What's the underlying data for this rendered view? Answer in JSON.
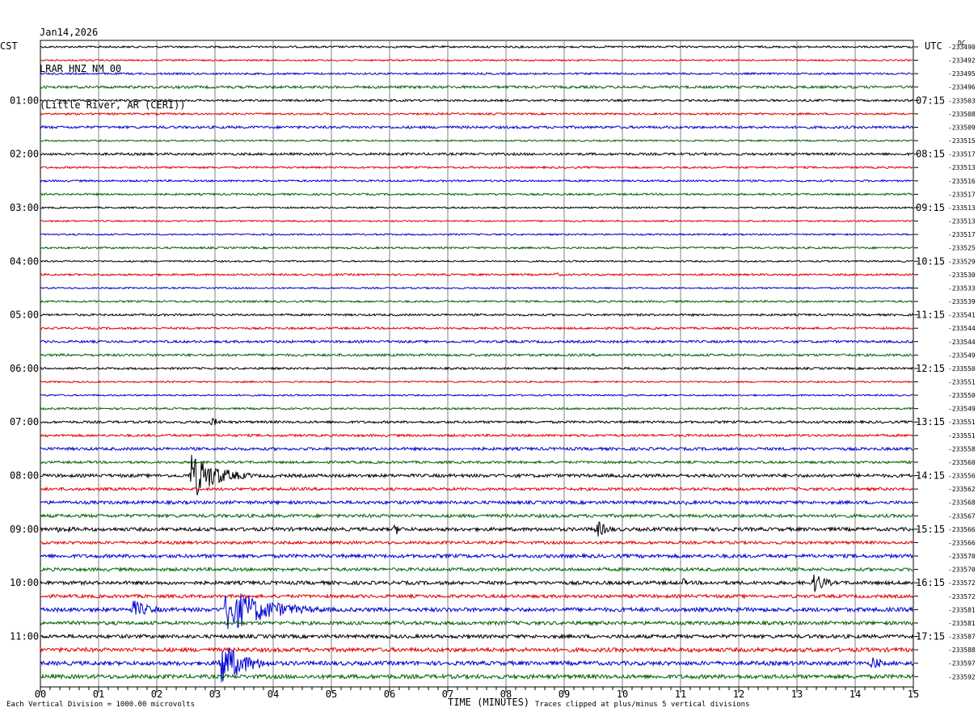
{
  "header": {
    "date": "Jan14,2026",
    "station": "LRAR HNZ NM 00",
    "location": "(Little River, AR (CERI))"
  },
  "left_zone_label": "CST",
  "right_zone_label": "UTC",
  "dc_label": "DC",
  "footer": {
    "scale_text": "Each Vertical Division = 1000.00 microvolts",
    "xlabel": "TIME (MINUTES)",
    "clip_text": "Traces clipped at plus/minus 5 vertical divisions"
  },
  "colors": {
    "black": "#000000",
    "red": "#e00000",
    "blue": "#0000d0",
    "green": "#006400",
    "grid": "#808080"
  },
  "chart_data": {
    "type": "line",
    "xlabel": "TIME (MINUTES)",
    "xlim": [
      0,
      15
    ],
    "x_ticks": [
      "00",
      "01",
      "02",
      "03",
      "04",
      "05",
      "06",
      "07",
      "08",
      "09",
      "10",
      "11",
      "12",
      "13",
      "14",
      "15"
    ],
    "trace_color_cycle": [
      "black",
      "red",
      "blue",
      "green"
    ],
    "rows_per_hour": 4,
    "left_hour_labels": [
      "01:00",
      "02:00",
      "03:00",
      "04:00",
      "05:00",
      "06:00",
      "07:00",
      "08:00",
      "09:00",
      "10:00",
      "11:00"
    ],
    "right_hour_labels": [
      "07:15",
      "08:15",
      "09:15",
      "10:15",
      "11:15",
      "12:15",
      "13:15",
      "14:15",
      "15:15",
      "16:15",
      "17:15"
    ],
    "dc_offsets": [
      "-233490",
      "-233492",
      "-233495",
      "-233496",
      "-233503",
      "-233508",
      "-233509",
      "-233515",
      "-233517",
      "-233513",
      "-233516",
      "-233517",
      "-233513",
      "-233513",
      "-233517",
      "-233525",
      "-233529",
      "-233530",
      "-233533",
      "-233539",
      "-233541",
      "-233544",
      "-233544",
      "-233549",
      "-233550",
      "-233551",
      "-233550",
      "-233549",
      "-233551",
      "-233551",
      "-233558",
      "-233560",
      "-233556",
      "-233562",
      "-233568",
      "-233567",
      "-233566",
      "-233566",
      "-233570",
      "-233570",
      "-233572",
      "-233572",
      "-233581",
      "-233581",
      "-233587",
      "-233588",
      "-233597",
      "-233592"
    ],
    "noise": [
      1.2,
      1.0,
      1.2,
      1.6,
      1.3,
      1.2,
      1.6,
      1.0,
      1.5,
      1.2,
      1.2,
      1.2,
      1.0,
      1.0,
      1.0,
      1.2,
      1.0,
      1.2,
      1.0,
      1.2,
      1.3,
      1.3,
      1.5,
      1.5,
      1.3,
      1.0,
      1.0,
      1.2,
      1.5,
      1.5,
      1.8,
      1.5,
      2.0,
      1.8,
      2.0,
      2.0,
      2.2,
      1.8,
      2.2,
      2.0,
      2.2,
      2.0,
      2.5,
      2.2,
      2.2,
      2.5,
      2.5,
      2.5
    ],
    "events": [
      {
        "row": 17,
        "minute": 1.85,
        "duration": 0.35,
        "amp": 3
      },
      {
        "row": 17,
        "minute": 8.85,
        "duration": 0.35,
        "amp": 3
      },
      {
        "row": 28,
        "minute": 2.95,
        "duration": 0.4,
        "amp": 6
      },
      {
        "row": 32,
        "minute": 2.6,
        "duration": 1.1,
        "amp": 30
      },
      {
        "row": 32,
        "minute": 13.7,
        "duration": 0.3,
        "amp": 3
      },
      {
        "row": 34,
        "minute": 11.1,
        "duration": 0.6,
        "amp": 3
      },
      {
        "row": 36,
        "minute": 0.3,
        "duration": 1.5,
        "amp": 4
      },
      {
        "row": 36,
        "minute": 6.1,
        "duration": 0.3,
        "amp": 8
      },
      {
        "row": 36,
        "minute": 9.55,
        "duration": 0.5,
        "amp": 12
      },
      {
        "row": 40,
        "minute": 11.05,
        "duration": 0.2,
        "amp": 6
      },
      {
        "row": 40,
        "minute": 13.3,
        "duration": 0.5,
        "amp": 14
      },
      {
        "row": 42,
        "minute": 1.6,
        "duration": 0.8,
        "amp": 12
      },
      {
        "row": 42,
        "minute": 3.2,
        "duration": 1.8,
        "amp": 30
      },
      {
        "row": 46,
        "minute": 3.1,
        "duration": 1.0,
        "amp": 30
      },
      {
        "row": 46,
        "minute": 14.3,
        "duration": 0.4,
        "amp": 10
      }
    ]
  }
}
